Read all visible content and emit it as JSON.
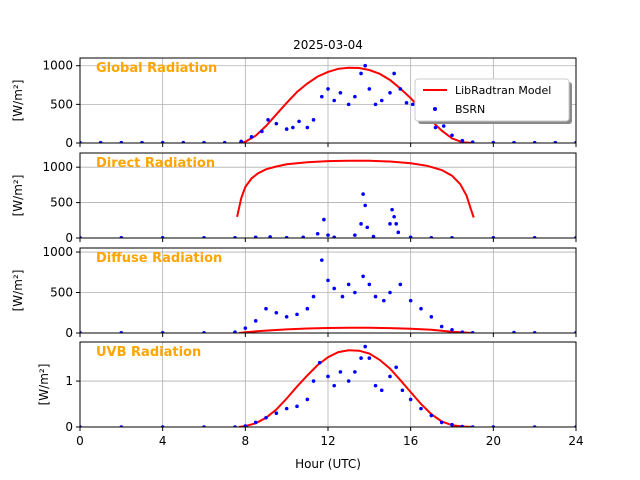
{
  "figure": {
    "title": "2025-03-04",
    "xlabel": "Hour (UTC)",
    "xticks": [
      "0",
      "4",
      "8",
      "12",
      "16",
      "20",
      "24"
    ]
  },
  "colors": {
    "model": "#ff0000",
    "bsrn": "#0000ff",
    "panel_title": "#ffa500",
    "grid": "#b0b0b0"
  },
  "legend": {
    "placement": "upper right of first panel",
    "entries": [
      "LibRadtran Model",
      "BSRN"
    ]
  },
  "chart_data": [
    {
      "type": "line+scatter",
      "title": "Global Radiation",
      "ylabel": "[W/m²]",
      "xlim": [
        0,
        24
      ],
      "ylim": [
        0,
        1100
      ],
      "yticks": [
        "0",
        "500",
        "1000"
      ],
      "grid": true,
      "series": [
        {
          "name": "LibRadtran Model",
          "style": "line",
          "x": [
            7.7,
            8,
            8.5,
            9,
            9.5,
            10,
            10.5,
            11,
            11.5,
            12,
            12.5,
            13,
            13.5,
            14,
            14.5,
            15,
            15.5,
            16,
            16.5,
            17,
            17.5,
            18,
            18.5,
            19
          ],
          "y": [
            0,
            15,
            95,
            220,
            370,
            520,
            660,
            770,
            860,
            920,
            960,
            975,
            970,
            945,
            895,
            815,
            705,
            580,
            440,
            290,
            160,
            60,
            10,
            0
          ]
        },
        {
          "name": "BSRN",
          "style": "markers",
          "x": [
            0,
            1,
            2,
            3,
            4,
            5,
            6,
            7,
            7.8,
            8.3,
            8.8,
            9.1,
            9.5,
            10,
            10.3,
            10.6,
            11,
            11.3,
            11.7,
            12,
            12.3,
            12.6,
            13,
            13.3,
            13.6,
            13.8,
            14,
            14.3,
            14.6,
            15,
            15.2,
            15.5,
            15.8,
            16.1,
            16.5,
            16.8,
            17.2,
            17.6,
            18,
            18.5,
            19,
            20,
            21,
            22,
            23,
            24
          ],
          "y": [
            5,
            5,
            5,
            5,
            5,
            5,
            5,
            5,
            20,
            80,
            150,
            300,
            250,
            180,
            200,
            280,
            200,
            300,
            600,
            700,
            550,
            650,
            500,
            600,
            900,
            1000,
            700,
            500,
            550,
            650,
            900,
            700,
            520,
            500,
            350,
            300,
            200,
            220,
            100,
            30,
            10,
            5,
            5,
            5,
            5,
            5
          ]
        }
      ]
    },
    {
      "type": "line+scatter",
      "title": "Direct Radiation",
      "ylabel": "[W/m²]",
      "xlim": [
        0,
        24
      ],
      "ylim": [
        0,
        1200
      ],
      "yticks": [
        "0",
        "500",
        "1000"
      ],
      "grid": true,
      "series": [
        {
          "name": "LibRadtran Model",
          "style": "line",
          "x": [
            7.6,
            7.8,
            8,
            8.3,
            8.6,
            9,
            9.5,
            10,
            11,
            12,
            13,
            14,
            15,
            16,
            16.8,
            17.5,
            18,
            18.4,
            18.7,
            18.9,
            19.05
          ],
          "y": [
            300,
            560,
            720,
            840,
            910,
            970,
            1010,
            1040,
            1070,
            1085,
            1090,
            1090,
            1080,
            1055,
            1020,
            960,
            880,
            760,
            600,
            420,
            290
          ]
        },
        {
          "name": "BSRN",
          "style": "markers",
          "x": [
            0,
            2,
            4,
            6,
            7.5,
            8.5,
            9.2,
            10,
            10.8,
            11.5,
            11.8,
            12,
            12.3,
            13.3,
            13.6,
            13.7,
            13.8,
            13.9,
            14.2,
            15,
            15.1,
            15.2,
            15.3,
            15.4,
            16,
            17,
            18,
            20,
            22,
            24
          ],
          "y": [
            2,
            2,
            2,
            2,
            2,
            10,
            15,
            5,
            10,
            60,
            260,
            40,
            10,
            40,
            200,
            620,
            460,
            150,
            20,
            200,
            400,
            300,
            200,
            80,
            10,
            2,
            2,
            2,
            2,
            2
          ]
        }
      ]
    },
    {
      "type": "line+scatter",
      "title": "Diffuse Radiation",
      "ylabel": "[W/m²]",
      "xlim": [
        0,
        24
      ],
      "ylim": [
        0,
        1050
      ],
      "yticks": [
        "0",
        "500",
        "1000"
      ],
      "grid": true,
      "series": [
        {
          "name": "LibRadtran Model",
          "style": "line",
          "x": [
            7.7,
            8,
            9,
            10,
            11,
            12,
            13,
            14,
            15,
            16,
            17,
            18,
            19
          ],
          "y": [
            0,
            10,
            30,
            45,
            55,
            62,
            65,
            64,
            60,
            52,
            40,
            15,
            0
          ]
        },
        {
          "name": "BSRN",
          "style": "markers",
          "x": [
            0,
            2,
            4,
            6,
            7.5,
            8,
            8.5,
            9,
            9.5,
            10,
            10.5,
            11,
            11.3,
            11.7,
            12,
            12.3,
            12.7,
            13,
            13.3,
            13.7,
            14,
            14.3,
            14.7,
            15,
            15.5,
            16,
            16.5,
            17,
            17.5,
            18,
            18.5,
            19,
            21,
            22,
            24
          ],
          "y": [
            2,
            2,
            2,
            2,
            10,
            60,
            150,
            300,
            250,
            200,
            230,
            300,
            450,
            900,
            650,
            550,
            450,
            600,
            500,
            700,
            600,
            450,
            400,
            500,
            600,
            400,
            300,
            200,
            80,
            40,
            10,
            2,
            5,
            2,
            2
          ]
        }
      ]
    },
    {
      "type": "line+scatter",
      "title": "UVB Radiation",
      "ylabel": "[W/m²]",
      "xlim": [
        0,
        24
      ],
      "ylim": [
        0,
        1.85
      ],
      "yticks": [
        "0",
        "1"
      ],
      "grid": true,
      "series": [
        {
          "name": "LibRadtran Model",
          "style": "line",
          "x": [
            7.7,
            8,
            8.5,
            9,
            9.5,
            10,
            10.5,
            11,
            11.5,
            12,
            12.5,
            13,
            13.5,
            14,
            14.5,
            15,
            15.5,
            16,
            16.5,
            17,
            17.5,
            18,
            18.5,
            19
          ],
          "y": [
            0,
            0.02,
            0.08,
            0.2,
            0.38,
            0.62,
            0.88,
            1.12,
            1.35,
            1.52,
            1.63,
            1.67,
            1.66,
            1.6,
            1.46,
            1.27,
            1.02,
            0.76,
            0.5,
            0.28,
            0.12,
            0.04,
            0.01,
            0
          ]
        },
        {
          "name": "BSRN",
          "style": "markers",
          "x": [
            0,
            2,
            4,
            6,
            7.5,
            8,
            8.5,
            9,
            9.5,
            10,
            10.5,
            11,
            11.3,
            11.6,
            12,
            12.3,
            12.6,
            13,
            13.3,
            13.6,
            13.8,
            14,
            14.3,
            14.6,
            15,
            15.3,
            15.6,
            16,
            16.5,
            17,
            17.5,
            18,
            18.5,
            19,
            20,
            22,
            24
          ],
          "y": [
            0,
            0,
            0,
            0,
            0,
            0.02,
            0.1,
            0.2,
            0.3,
            0.4,
            0.45,
            0.6,
            1.0,
            1.4,
            1.1,
            0.9,
            1.2,
            1.0,
            1.2,
            1.5,
            1.75,
            1.5,
            0.9,
            0.8,
            1.1,
            1.3,
            0.8,
            0.6,
            0.4,
            0.25,
            0.1,
            0.05,
            0.01,
            0,
            0,
            0,
            0
          ]
        }
      ]
    }
  ]
}
